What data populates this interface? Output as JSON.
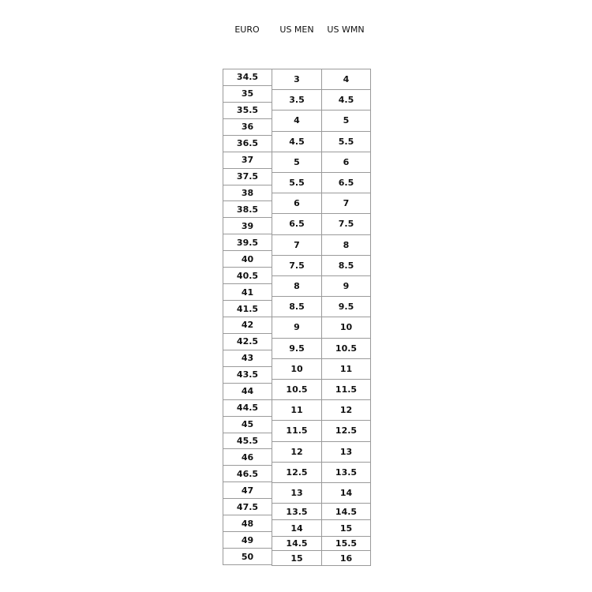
{
  "headers": {
    "euro": "EURO",
    "us_men": "US MEN",
    "us_wmn": "US WMN"
  },
  "euro": [
    "34.5",
    "35",
    "35.5",
    "36",
    "36.5",
    "37",
    "37.5",
    "38",
    "38.5",
    "39",
    "39.5",
    "40",
    "40.5",
    "41",
    "41.5",
    "42",
    "42.5",
    "43",
    "43.5",
    "44",
    "44.5",
    "45",
    "45.5",
    "46",
    "46.5",
    "47",
    "47.5",
    "48",
    "49",
    "50"
  ],
  "us_men": [
    "3",
    "3.5",
    "4",
    "4.5",
    "5",
    "5.5",
    "6",
    "6.5",
    "7",
    "7.5",
    "8",
    "8.5",
    "9",
    "9.5",
    "10",
    "10.5",
    "11",
    "11.5",
    "12",
    "12.5",
    "13",
    "13.5",
    "14",
    "14.5",
    "15"
  ],
  "us_wmn": [
    "4",
    "4.5",
    "5",
    "5.5",
    "6",
    "6.5",
    "7",
    "7.5",
    "8",
    "8.5",
    "9",
    "9.5",
    "10",
    "10.5",
    "11",
    "11.5",
    "12",
    "12.5",
    "13",
    "13.5",
    "14",
    "14.5",
    "15",
    "15.5",
    "16"
  ]
}
